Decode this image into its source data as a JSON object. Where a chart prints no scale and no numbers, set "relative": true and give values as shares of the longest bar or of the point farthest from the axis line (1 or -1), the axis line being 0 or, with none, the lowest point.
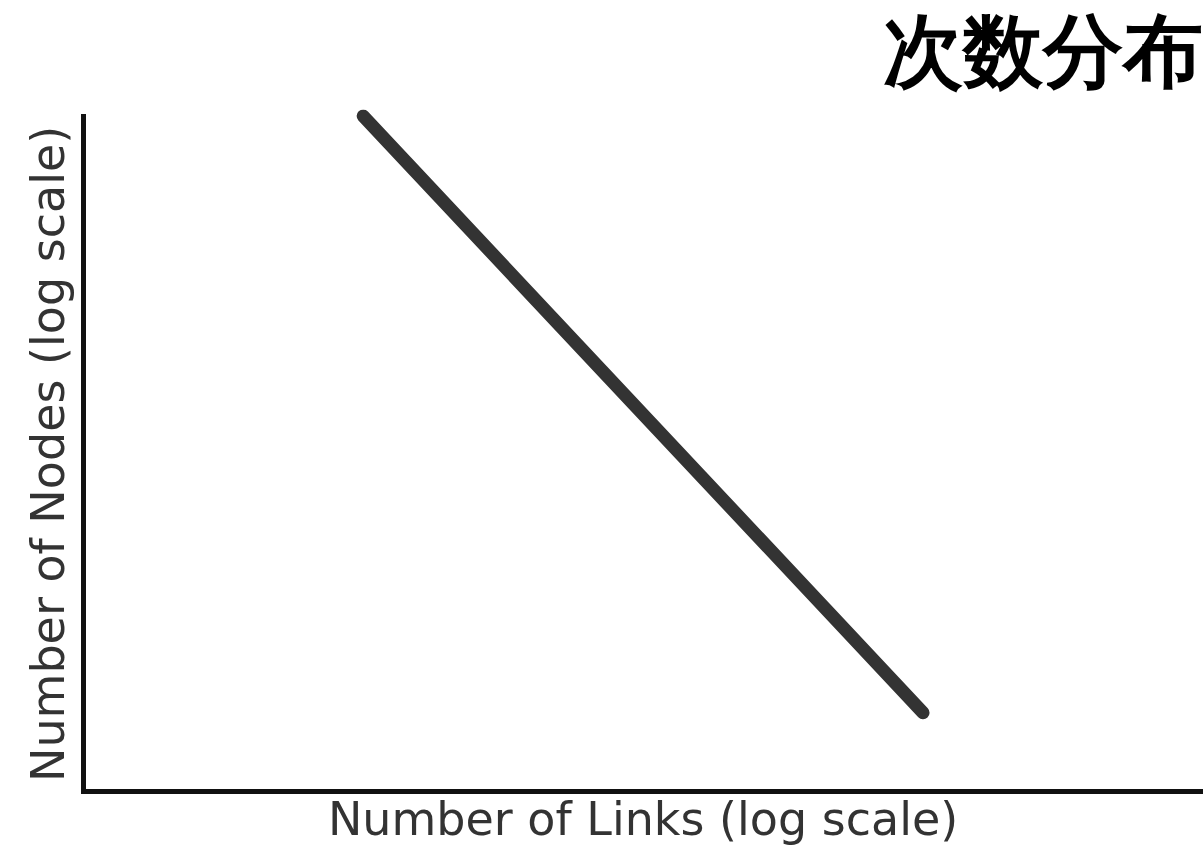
{
  "chart_data": {
    "type": "line",
    "title": "次数分布",
    "xlabel": "Number of Links (log scale)",
    "ylabel": "Number of Nodes (log scale)",
    "relative": true,
    "categories": [
      null,
      null
    ],
    "series": [
      {
        "color": "#333333",
        "values": [
          1,
          0.117
        ]
      }
    ],
    "grid": false,
    "legend": false,
    "tick_labels": false,
    "marker": "none",
    "line_style": "solid"
  }
}
